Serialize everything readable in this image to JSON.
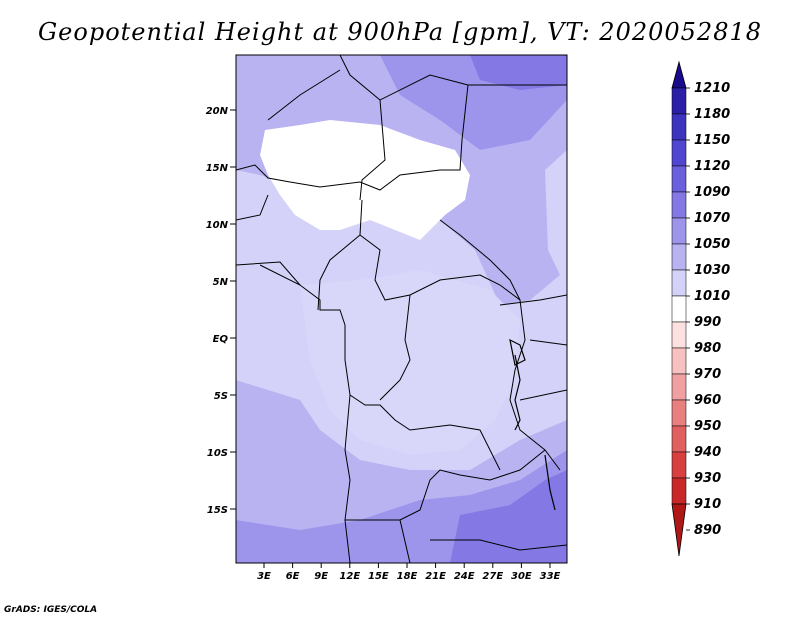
{
  "title": "Geopotential Height at 900hPa [gpm], VT: 2020052818",
  "credit": "GrADS: IGES/COLA",
  "y_ticks": [
    "20N",
    "15N",
    "10N",
    "5N",
    "EQ",
    "5S",
    "10S",
    "15S"
  ],
  "x_ticks": [
    "3E",
    "6E",
    "9E",
    "12E",
    "15E",
    "18E",
    "21E",
    "24E",
    "27E",
    "30E",
    "33E"
  ],
  "colorbar": {
    "levels": [
      "1210",
      "1180",
      "1150",
      "1120",
      "1090",
      "1070",
      "1050",
      "1030",
      "1010",
      "990",
      "980",
      "970",
      "960",
      "950",
      "940",
      "930",
      "910",
      "890"
    ],
    "colors": [
      "#1a0a8c",
      "#2b1fa8",
      "#3c34bf",
      "#5046cf",
      "#6a5fdc",
      "#8479e4",
      "#9d95ec",
      "#b9b3f2",
      "#d4d2f8",
      "#ffffff",
      "#fde0e0",
      "#f8c1c1",
      "#f0a0a0",
      "#e88080",
      "#e06060",
      "#d84040",
      "#c82828",
      "#b01818"
    ]
  }
}
